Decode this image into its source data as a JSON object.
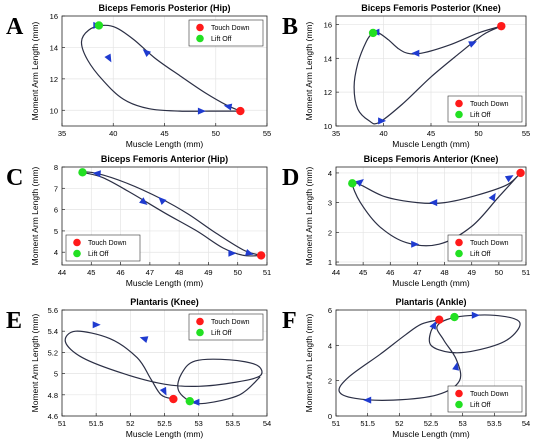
{
  "colors": {
    "curve": "#2b2f45",
    "arrow": "#1f3bd0",
    "touch_down": "#ff1a1a",
    "lift_off": "#22e022",
    "grid": "#e4e4e4"
  },
  "legend": {
    "touch_down": "Touch Down",
    "lift_off": "Lift Off"
  },
  "chart_data": [
    {
      "panel": "A",
      "type": "line",
      "title": "Biceps Femoris Posterior (Hip)",
      "xlabel": "Muscle Length (mm)",
      "ylabel": "Moment Arm Length (mm)",
      "xlim": [
        35,
        55
      ],
      "ylim": [
        9,
        16
      ],
      "xticks": [
        35,
        40,
        45,
        50,
        55
      ],
      "yticks": [
        10,
        12,
        14,
        16
      ],
      "grid": true,
      "legend_position": "top-right",
      "touch_down": [
        52.4,
        9.95
      ],
      "lift_off": [
        38.6,
        15.4
      ],
      "curve": [
        [
          52.4,
          9.95
        ],
        [
          51.0,
          10.35
        ],
        [
          49.0,
          11.1
        ],
        [
          46.5,
          12.2
        ],
        [
          44.0,
          13.35
        ],
        [
          42.0,
          14.5
        ],
        [
          40.3,
          15.25
        ],
        [
          39.0,
          15.4
        ],
        [
          37.6,
          15.1
        ],
        [
          36.9,
          14.35
        ],
        [
          37.5,
          13.2
        ],
        [
          39.0,
          11.9
        ],
        [
          41.0,
          10.7
        ],
        [
          43.5,
          10.1
        ],
        [
          46.5,
          9.95
        ],
        [
          49.5,
          9.95
        ],
        [
          51.0,
          9.95
        ],
        [
          52.4,
          9.95
        ]
      ],
      "arrows": [
        [
          43.2,
          13.7,
          -1,
          0.85
        ],
        [
          39.6,
          13.3,
          0.55,
          -1
        ],
        [
          48.6,
          9.95,
          1,
          0
        ],
        [
          51.2,
          10.25,
          -1,
          0.2
        ],
        [
          38.4,
          15.4,
          1,
          0
        ]
      ]
    },
    {
      "panel": "B",
      "type": "line",
      "title": "Biceps Femoris Posterior (Knee)",
      "xlabel": "Muscle Length (mm)",
      "ylabel": "Moment Arm Length (mm)",
      "xlim": [
        35,
        55
      ],
      "ylim": [
        10,
        16.5
      ],
      "xticks": [
        35,
        40,
        45,
        50,
        55
      ],
      "yticks": [
        10,
        12,
        14,
        16
      ],
      "grid": true,
      "legend_position": "bottom-right",
      "touch_down": [
        52.4,
        15.9
      ],
      "lift_off": [
        38.9,
        15.5
      ],
      "curve": [
        [
          52.4,
          15.9
        ],
        [
          50.0,
          15.5
        ],
        [
          47.0,
          14.8
        ],
        [
          44.0,
          14.3
        ],
        [
          42.5,
          14.3
        ],
        [
          41.5,
          14.6
        ],
        [
          40.5,
          15.1
        ],
        [
          39.5,
          15.5
        ],
        [
          38.9,
          15.5
        ],
        [
          38.2,
          15.0
        ],
        [
          37.3,
          13.7
        ],
        [
          36.9,
          12.3
        ],
        [
          37.3,
          11.0
        ],
        [
          38.5,
          10.3
        ],
        [
          39.5,
          10.2
        ],
        [
          42.0,
          11.3
        ],
        [
          45.0,
          12.9
        ],
        [
          48.0,
          14.3
        ],
        [
          50.5,
          15.4
        ],
        [
          52.4,
          15.9
        ]
      ],
      "arrows": [
        [
          49.4,
          14.9,
          1,
          0.45
        ],
        [
          43.4,
          14.3,
          -1,
          0
        ],
        [
          39.8,
          10.3,
          1,
          0
        ],
        [
          39.2,
          15.55,
          -1,
          0
        ]
      ]
    },
    {
      "panel": "C",
      "type": "line",
      "title": "Biceps Femoris Anterior (Hip)",
      "xlabel": "Muscle Length (mm)",
      "ylabel": "Moment Arm Length (mm)",
      "xlim": [
        44,
        51
      ],
      "ylim": [
        3.4,
        8
      ],
      "xticks": [
        44,
        45,
        46,
        47,
        48,
        49,
        50,
        51
      ],
      "yticks": [
        4,
        5,
        6,
        7,
        8
      ],
      "grid": true,
      "legend_position": "bottom-left",
      "touch_down": [
        50.8,
        3.85
      ],
      "lift_off": [
        44.7,
        7.75
      ],
      "curve": [
        [
          50.8,
          3.85
        ],
        [
          50.2,
          4.1
        ],
        [
          49.2,
          4.95
        ],
        [
          48.3,
          5.8
        ],
        [
          47.4,
          6.5
        ],
        [
          46.2,
          7.25
        ],
        [
          45.2,
          7.7
        ],
        [
          44.7,
          7.75
        ],
        [
          45.4,
          7.5
        ],
        [
          46.4,
          6.75
        ],
        [
          47.5,
          5.85
        ],
        [
          48.6,
          5.0
        ],
        [
          49.5,
          4.2
        ],
        [
          50.2,
          3.85
        ],
        [
          50.8,
          3.85
        ]
      ],
      "arrows": [
        [
          47.4,
          6.45,
          -1,
          1.0
        ],
        [
          46.8,
          6.35,
          1,
          -0.8
        ],
        [
          49.8,
          3.95,
          1,
          0
        ],
        [
          50.4,
          3.95,
          1,
          -0.3
        ],
        [
          45.2,
          7.7,
          -1,
          0.1
        ]
      ]
    },
    {
      "panel": "D",
      "type": "line",
      "title": "Biceps Femoris Anterior (Knee)",
      "xlabel": "Muscle Length (mm)",
      "ylabel": "Moment Arm Length (mm)",
      "xlim": [
        44,
        51
      ],
      "ylim": [
        0.9,
        4.2
      ],
      "xticks": [
        44,
        45,
        46,
        47,
        48,
        49,
        50,
        51
      ],
      "yticks": [
        1,
        2,
        3,
        4
      ],
      "grid": true,
      "legend_position": "bottom-right",
      "touch_down": [
        50.8,
        4.0
      ],
      "lift_off": [
        44.6,
        3.65
      ],
      "curve": [
        [
          50.8,
          4.0
        ],
        [
          50.3,
          3.6
        ],
        [
          49.2,
          3.25
        ],
        [
          48.0,
          3.0
        ],
        [
          47.0,
          3.0
        ],
        [
          45.8,
          3.2
        ],
        [
          44.9,
          3.6
        ],
        [
          44.6,
          3.65
        ],
        [
          44.9,
          3.0
        ],
        [
          45.6,
          2.2
        ],
        [
          46.6,
          1.65
        ],
        [
          47.8,
          1.6
        ],
        [
          49.0,
          2.2
        ],
        [
          50.0,
          3.2
        ],
        [
          50.8,
          4.0
        ]
      ],
      "arrows": [
        [
          47.6,
          3.0,
          -1,
          0
        ],
        [
          44.9,
          3.7,
          1,
          0.8
        ],
        [
          46.9,
          1.6,
          1,
          0
        ],
        [
          49.8,
          3.2,
          0.6,
          1
        ],
        [
          50.4,
          3.85,
          1,
          0.6
        ]
      ]
    },
    {
      "panel": "E",
      "type": "line",
      "title": "Plantaris (Knee)",
      "xlabel": "Muscle Length (mm)",
      "ylabel": "Moment Arm Length (mm)",
      "xlim": [
        51,
        54
      ],
      "ylim": [
        4.6,
        5.6
      ],
      "xticks": [
        51,
        51.5,
        52,
        52.5,
        53,
        53.5,
        54
      ],
      "yticks": [
        4.6,
        4.8,
        5.0,
        5.2,
        5.4,
        5.6
      ],
      "grid": true,
      "legend_position": "top-right",
      "touch_down": [
        52.63,
        4.76
      ],
      "lift_off": [
        52.87,
        4.74
      ],
      "curve": [
        [
          52.63,
          4.76
        ],
        [
          52.45,
          4.8
        ],
        [
          52.3,
          4.95
        ],
        [
          52.1,
          5.15
        ],
        [
          51.7,
          5.33
        ],
        [
          51.2,
          5.4
        ],
        [
          51.05,
          5.3
        ],
        [
          51.3,
          5.15
        ],
        [
          51.9,
          5.0
        ],
        [
          52.5,
          4.9
        ],
        [
          53.0,
          4.88
        ],
        [
          53.55,
          4.92
        ],
        [
          53.9,
          4.98
        ],
        [
          53.85,
          5.08
        ],
        [
          53.45,
          5.13
        ],
        [
          52.95,
          5.12
        ],
        [
          52.75,
          5.0
        ],
        [
          52.7,
          4.85
        ],
        [
          52.87,
          4.74
        ],
        [
          53.1,
          4.72
        ],
        [
          53.6,
          4.8
        ],
        [
          53.9,
          4.97
        ]
      ],
      "arrows": [
        [
          51.5,
          5.46,
          1,
          0
        ],
        [
          52.2,
          5.33,
          -1,
          0.3
        ],
        [
          52.5,
          4.83,
          0.5,
          -1
        ],
        [
          52.96,
          4.73,
          -1,
          0
        ]
      ]
    },
    {
      "panel": "F",
      "type": "line",
      "title": "Plantaris (Ankle)",
      "xlabel": "Muscle Length (mm)",
      "ylabel": "Moment Arm Length (mm)",
      "xlim": [
        51,
        54
      ],
      "ylim": [
        0,
        6
      ],
      "xticks": [
        51,
        51.5,
        52,
        52.5,
        53,
        53.5,
        54
      ],
      "yticks": [
        0,
        2,
        4,
        6
      ],
      "grid": true,
      "legend_position": "bottom-right",
      "touch_down": [
        52.63,
        5.45
      ],
      "lift_off": [
        52.87,
        5.6
      ],
      "curve": [
        [
          52.63,
          5.45
        ],
        [
          52.35,
          5.2
        ],
        [
          52.1,
          4.6
        ],
        [
          51.7,
          3.5
        ],
        [
          51.2,
          2.2
        ],
        [
          51.05,
          1.4
        ],
        [
          51.3,
          1.0
        ],
        [
          51.9,
          0.9
        ],
        [
          52.6,
          1.2
        ],
        [
          52.95,
          2.0
        ],
        [
          52.9,
          3.2
        ],
        [
          52.7,
          4.3
        ],
        [
          52.6,
          5.1
        ],
        [
          52.9,
          5.6
        ],
        [
          53.5,
          5.7
        ],
        [
          53.9,
          5.3
        ],
        [
          53.7,
          4.3
        ],
        [
          53.2,
          3.7
        ],
        [
          52.8,
          3.6
        ],
        [
          52.5,
          4.0
        ],
        [
          52.5,
          4.8
        ],
        [
          52.63,
          5.45
        ]
      ],
      "arrows": [
        [
          51.5,
          0.9,
          -1,
          0
        ],
        [
          52.9,
          2.8,
          0.2,
          1
        ],
        [
          52.55,
          5.15,
          0.5,
          1
        ],
        [
          53.2,
          5.7,
          1,
          0
        ]
      ]
    }
  ]
}
